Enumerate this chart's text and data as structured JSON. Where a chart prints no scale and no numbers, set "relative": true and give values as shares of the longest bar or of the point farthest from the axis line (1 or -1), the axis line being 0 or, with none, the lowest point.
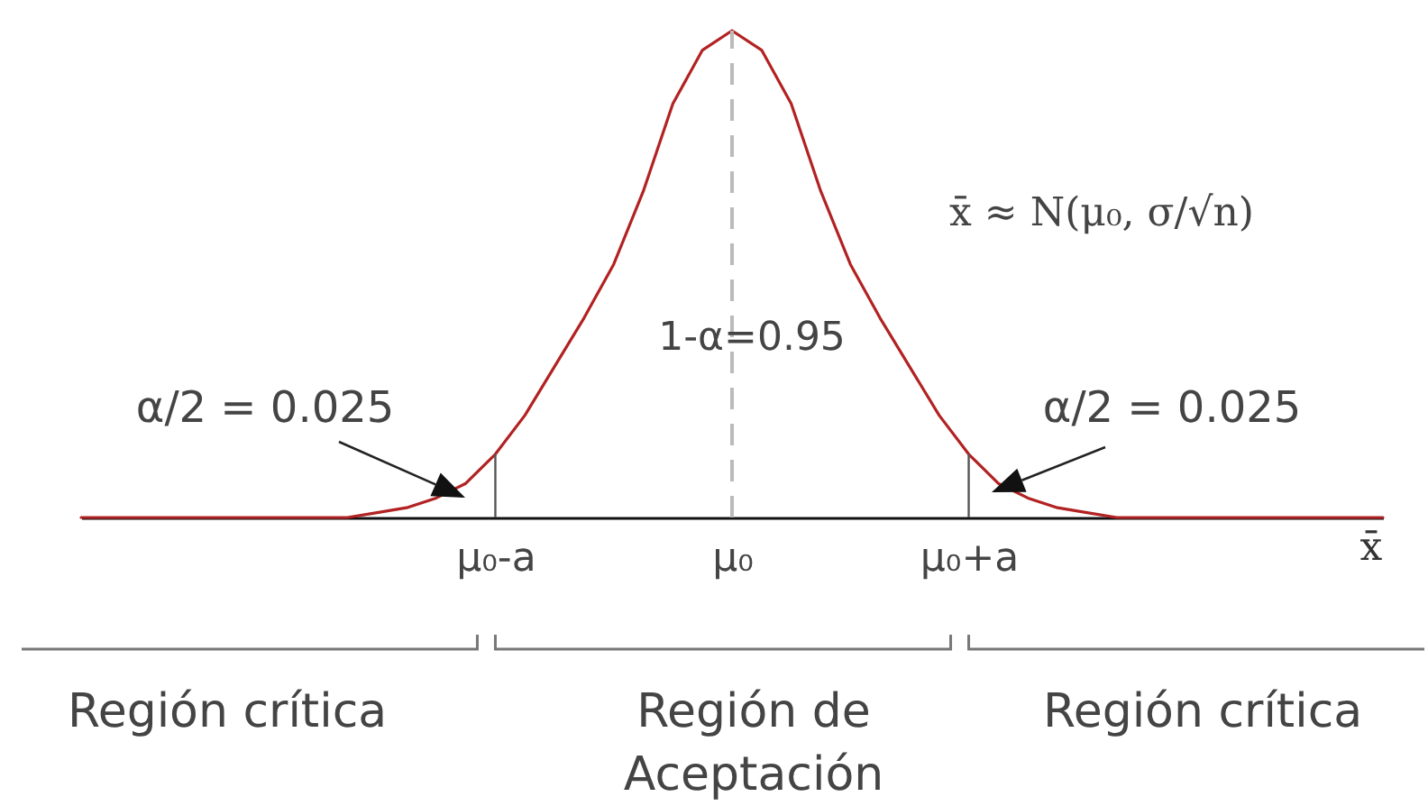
{
  "chart_data": {
    "type": "line",
    "relative": true,
    "categories": [
      null,
      null,
      null,
      null,
      null,
      null,
      null,
      null,
      null,
      null,
      null,
      null,
      null,
      null,
      "μ₀-a",
      null,
      null,
      null,
      null,
      null,
      null,
      null,
      "μ₀",
      null,
      null,
      null,
      null,
      null,
      null,
      null,
      "μ₀+a",
      null,
      null,
      null,
      null,
      null,
      null,
      null,
      null,
      null,
      null,
      null,
      null,
      null,
      null
    ],
    "values": [
      0,
      0,
      0,
      0,
      0,
      0,
      0,
      0,
      0,
      0,
      0.01,
      0.02,
      0.04,
      0.07,
      0.13,
      0.21,
      0.31,
      0.41,
      0.52,
      0.67,
      0.85,
      0.96,
      1,
      0.96,
      0.85,
      0.67,
      0.52,
      0.41,
      0.31,
      0.21,
      0.13,
      0.07,
      0.04,
      0.02,
      0.01,
      0,
      0,
      0,
      0,
      0,
      0,
      0,
      0,
      0,
      0
    ],
    "color": "#b22222",
    "xlabel": "x̄",
    "ref_lines": [
      {
        "axis": "x",
        "value": "μ₀-a",
        "color": "#555555"
      },
      {
        "axis": "x",
        "value": "μ₀",
        "color": "#bbbbbb",
        "line_style": "dashed"
      },
      {
        "axis": "x",
        "value": "μ₀+a",
        "color": "#555555"
      }
    ],
    "annotations": [
      "α/2 = 0.025",
      "α/2 = 0.025",
      "1-α=0.95",
      "x̄ ≈ N(μ₀, σ/√n)",
      "Región crítica",
      "Región de Aceptación",
      "Región crítica"
    ]
  }
}
